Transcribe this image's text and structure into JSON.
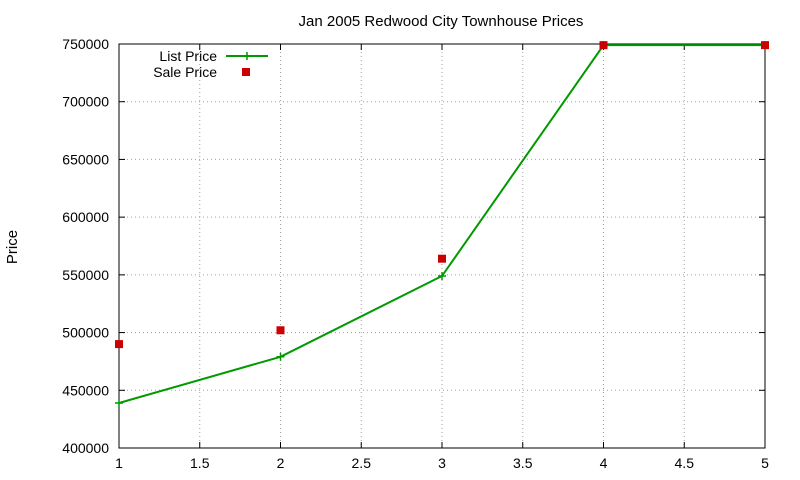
{
  "chart_data": {
    "type": "line",
    "title": "Jan 2005 Redwood City Townhouse Prices",
    "xlabel": "",
    "ylabel": "Price",
    "xlim": [
      1,
      5
    ],
    "ylim": [
      400000,
      750000
    ],
    "x_ticks": [
      "1",
      "1.5",
      "2",
      "2.5",
      "3",
      "3.5",
      "4",
      "4.5",
      "5"
    ],
    "y_ticks": [
      "400000",
      "450000",
      "500000",
      "550000",
      "600000",
      "650000",
      "700000",
      "750000"
    ],
    "grid": true,
    "legend_position": "top-left",
    "series": [
      {
        "name": "List Price",
        "style": "line-with-plus-markers",
        "color": "#009900",
        "points": [
          [
            1,
            439000
          ],
          [
            2,
            479000
          ],
          [
            3,
            549000
          ],
          [
            4,
            749000
          ],
          [
            5,
            749000
          ]
        ]
      },
      {
        "name": "Sale Price",
        "style": "square-markers",
        "color": "#cc0000",
        "points": [
          [
            1,
            490000
          ],
          [
            2,
            502000
          ],
          [
            3,
            564000
          ],
          [
            4,
            749000
          ],
          [
            5,
            749000
          ]
        ]
      }
    ]
  }
}
